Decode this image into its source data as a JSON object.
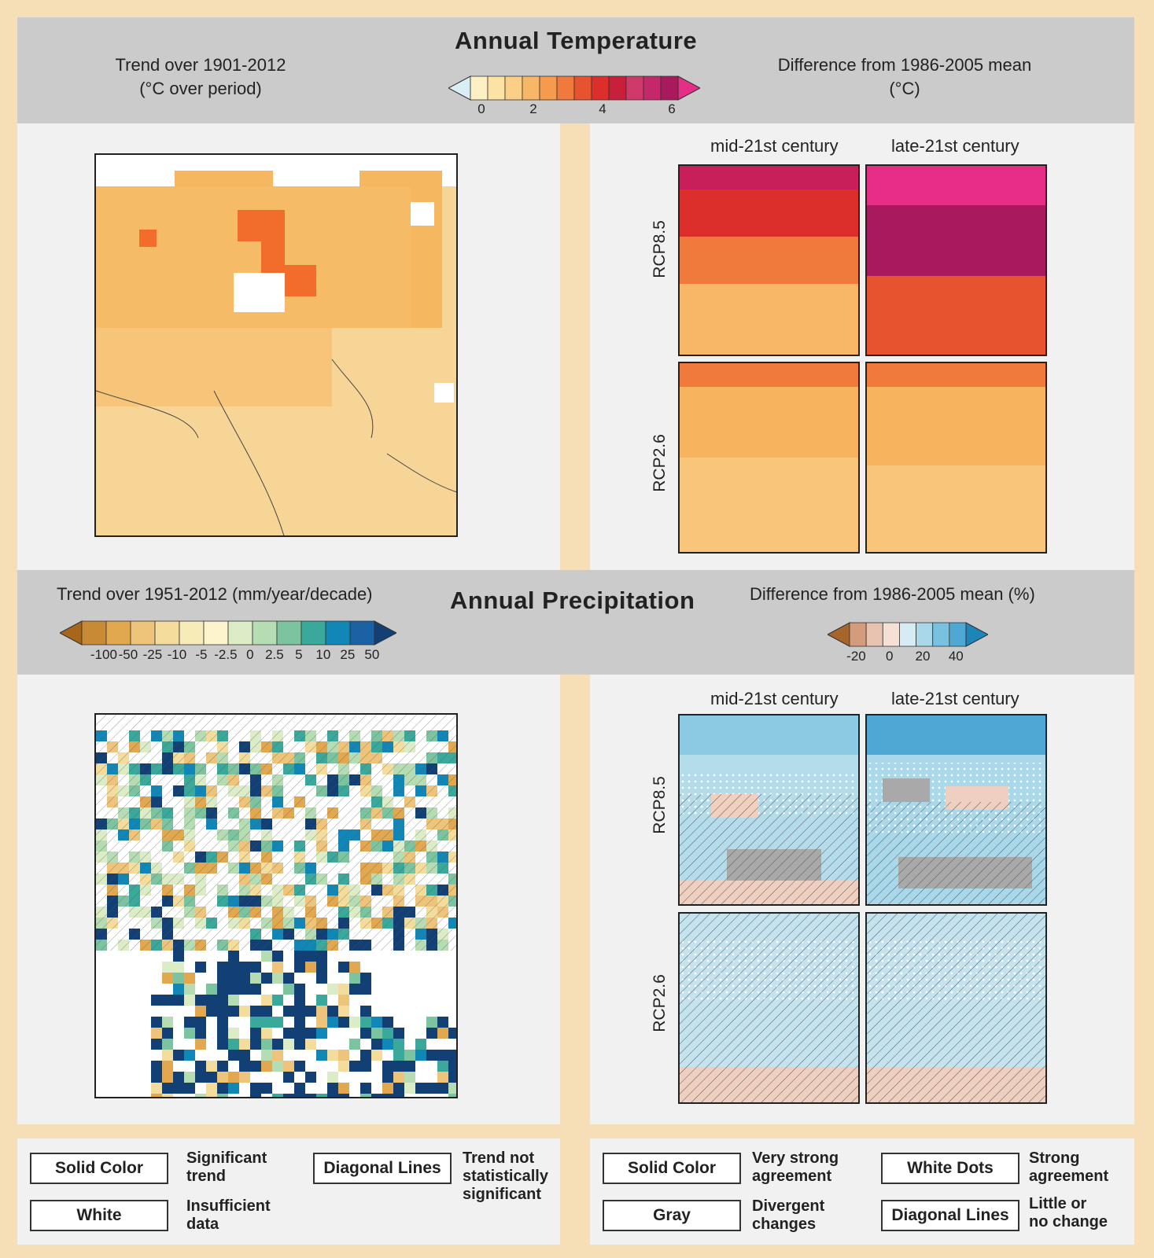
{
  "temperature": {
    "title": "Annual Temperature",
    "left_header": "Trend over 1901-2012\n(°C over period)",
    "right_header": "Difference from 1986-2005 mean\n(°C)",
    "colorbar_ticks": [
      "0",
      "2",
      "4",
      "6"
    ],
    "colorbar_colors": [
      "#d9eef4",
      "#fdf1c4",
      "#fce3a4",
      "#fbcf85",
      "#f8b766",
      "#f49b4e",
      "#ef7a3c",
      "#e8532f",
      "#dc2f2c",
      "#c81f3a",
      "#d03a6b",
      "#c4286b",
      "#a81a5d",
      "#e62e86"
    ],
    "col_labels": [
      "mid-21st century",
      "late-21st century"
    ],
    "row_labels": [
      "RCP8.5",
      "RCP2.6"
    ]
  },
  "precipitation": {
    "title": "Annual Precipitation",
    "left_header": "Trend over 1951-2012 (mm/year/decade)",
    "right_header": "Difference from 1986-2005 mean (%)",
    "left_colorbar_ticks": [
      "-100",
      "-50",
      "-25",
      "-10",
      "-5",
      "-2.5",
      "0",
      "2.5",
      "5",
      "10",
      "25",
      "50"
    ],
    "left_colorbar_colors": [
      "#a8651c",
      "#c98a36",
      "#e1a850",
      "#eec47a",
      "#f4dc9c",
      "#f7ecb7",
      "#fbf4cc",
      "#dcecc6",
      "#b6dcb3",
      "#7cc4a0",
      "#3aa89a",
      "#1187b7",
      "#1b62a5",
      "#123f74"
    ],
    "right_colorbar_ticks": [
      "-20",
      "0",
      "20",
      "40"
    ],
    "right_colorbar_colors": [
      "#a7652b",
      "#d59b7d",
      "#e8c3b0",
      "#f4e0d4",
      "#d6ecf4",
      "#a9d8ea",
      "#79c1e0",
      "#4ea8d3",
      "#1e85b8"
    ],
    "col_labels": [
      "mid-21st century",
      "late-21st century"
    ],
    "row_labels": [
      "RCP8.5",
      "RCP2.6"
    ]
  },
  "legend_left": {
    "solid_color": "Solid Color",
    "solid_color_desc": "Significant\ntrend",
    "white": "White",
    "white_desc": "Insufficient\ndata",
    "diagonal_lines": "Diagonal Lines",
    "diagonal_lines_desc": "Trend not\nstatistically\nsignificant"
  },
  "legend_right": {
    "solid_color": "Solid Color",
    "solid_color_desc": "Very strong\nagreement",
    "gray": "Gray",
    "gray_desc": "Divergent\nchanges",
    "white_dots": "White Dots",
    "white_dots_desc": "Strong\nagreement",
    "diagonal_lines": "Diagonal Lines",
    "diagonal_lines_desc": "Little or\nno change"
  }
}
